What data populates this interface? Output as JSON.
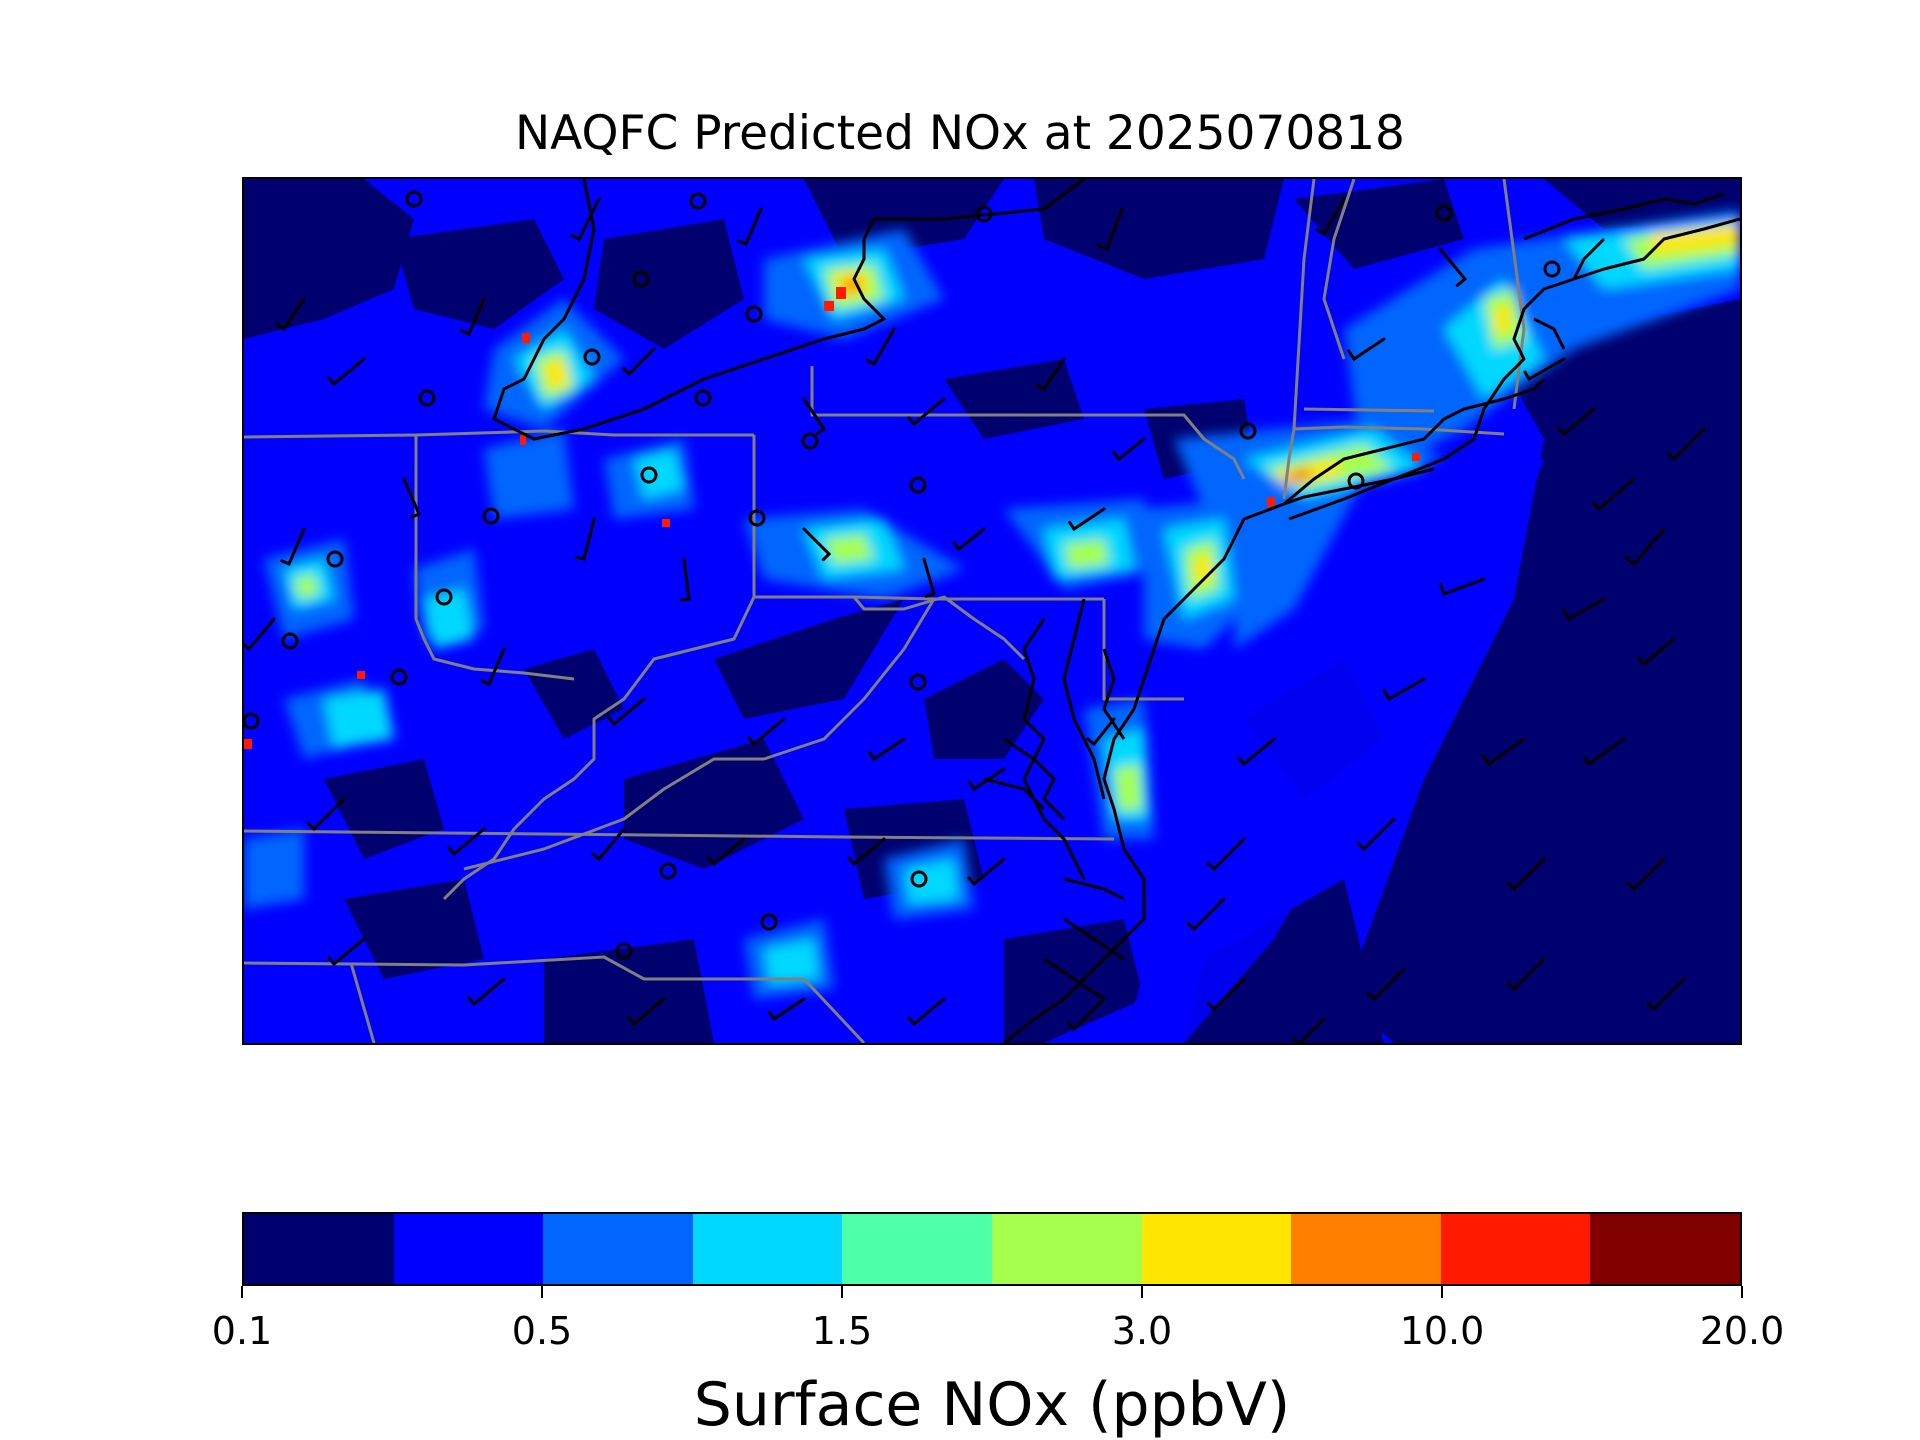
{
  "title": "NAQFC Predicted NOx at 2025070818",
  "map": {
    "type": "heatmap",
    "colormap": "jet",
    "overlays": [
      "wind-barbs",
      "station-circles",
      "state-borders",
      "coastlines"
    ],
    "colors": {
      "state_border": "#808080",
      "coastline": "#000000",
      "wind_barb": "#000000",
      "station": "#000000"
    }
  },
  "colorbar": {
    "levels": [
      0.1,
      0.3,
      0.5,
      1.0,
      1.5,
      2.0,
      3.0,
      5.0,
      10.0,
      15.0,
      20.0
    ],
    "colors": [
      "#00006e",
      "#0000ff",
      "#0066ff",
      "#00d8ff",
      "#4dffa6",
      "#a6ff4d",
      "#ffe600",
      "#ff8000",
      "#ff1a00",
      "#800000"
    ],
    "tick_labels": [
      "0.1",
      "0.5",
      "1.5",
      "3.0",
      "10.0",
      "20.0"
    ],
    "label": "Surface NOx (ppbV)"
  }
}
